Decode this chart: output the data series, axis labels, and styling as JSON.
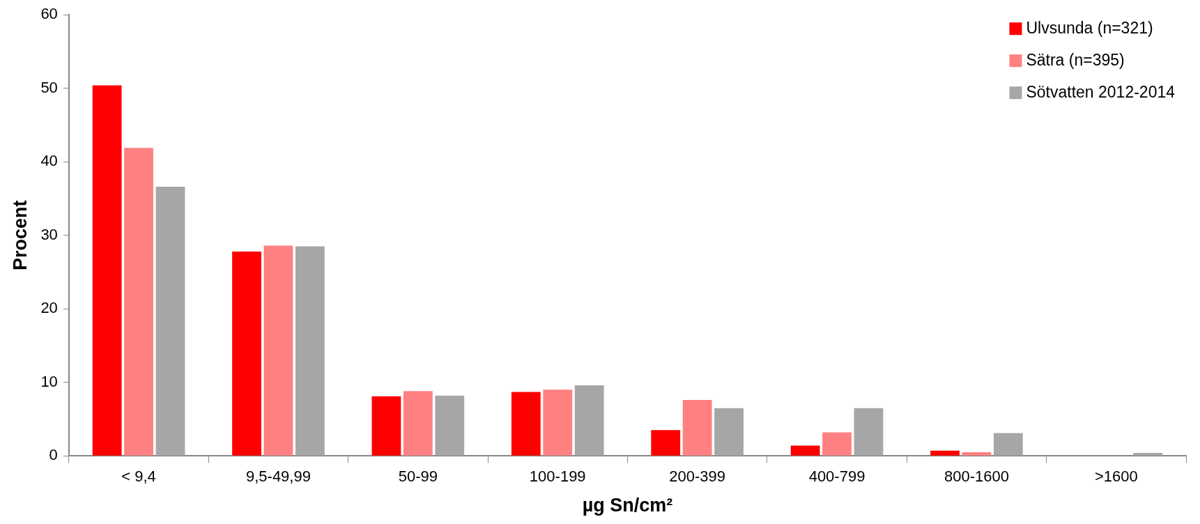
{
  "chart_data": {
    "type": "bar",
    "xlabel": "µg Sn/cm²",
    "ylabel": "Procent",
    "categories": [
      "< 9,4",
      "9,5-49,99",
      "50-99",
      "100-199",
      "200-399",
      "400-799",
      "800-1600",
      ">1600"
    ],
    "series": [
      {
        "name": "Ulvsunda (n=321)",
        "color": "#ff0000",
        "values": [
          50.4,
          27.8,
          8.1,
          8.7,
          3.5,
          1.4,
          0.7,
          0
        ]
      },
      {
        "name": "Sätra (n=395)",
        "color": "#ff8080",
        "values": [
          41.9,
          28.6,
          8.8,
          9.0,
          7.6,
          3.2,
          0.5,
          0
        ]
      },
      {
        "name": "Sötvatten 2012-2014",
        "color": "#a6a6a6",
        "values": [
          36.6,
          28.5,
          8.2,
          9.6,
          6.5,
          6.5,
          3.1,
          0.4
        ]
      }
    ],
    "ylim": [
      0,
      60
    ],
    "yticks": [
      0,
      10,
      20,
      30,
      40,
      50,
      60
    ],
    "grid": false,
    "legend": "top right"
  }
}
